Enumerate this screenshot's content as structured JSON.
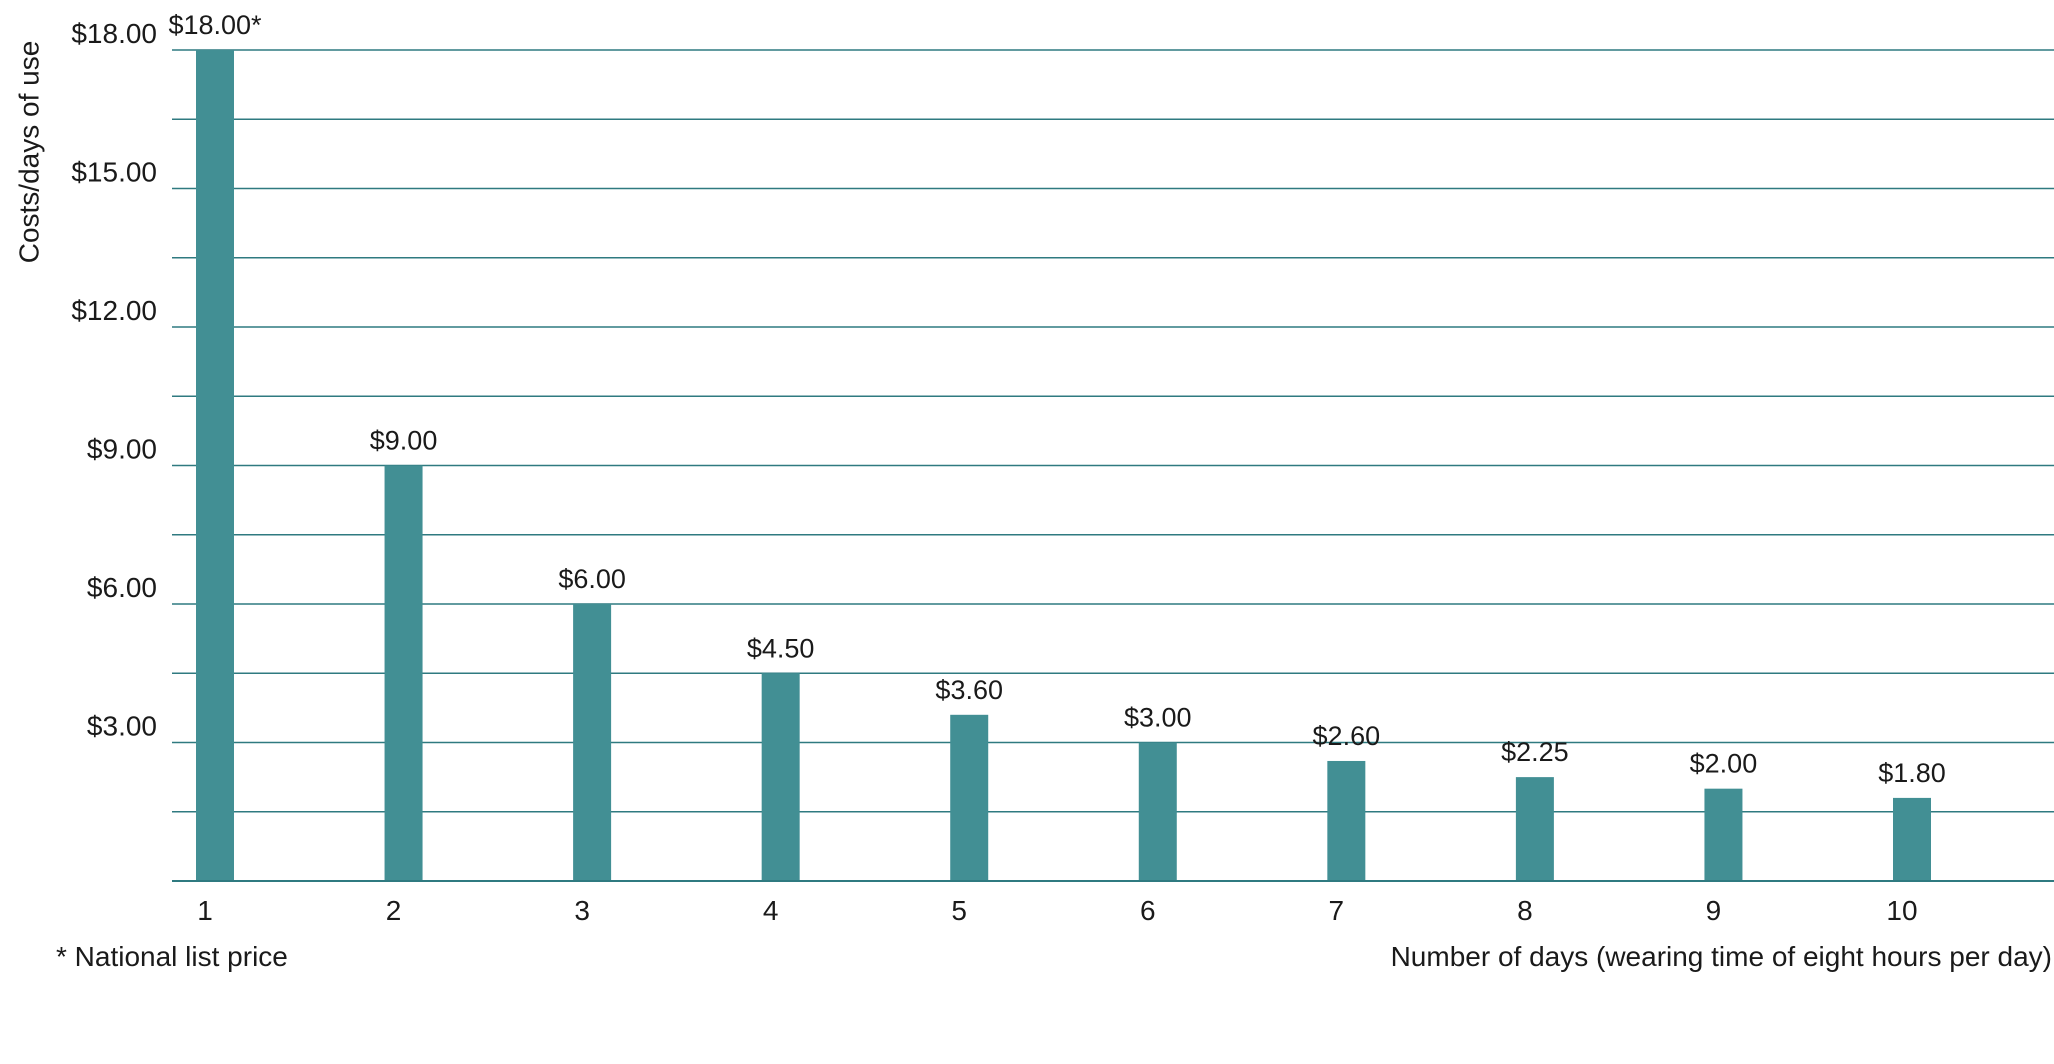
{
  "chart_data": {
    "type": "bar",
    "title": "",
    "ylabel": "Costs/days of use",
    "xlabel": "Number of days (wearing time of eight hours per day)",
    "footnote": "* National list price",
    "categories": [
      "1",
      "2",
      "3",
      "4",
      "5",
      "6",
      "7",
      "8",
      "9",
      "10"
    ],
    "values": [
      18.0,
      9.0,
      6.0,
      4.5,
      3.6,
      3.0,
      2.6,
      2.25,
      2.0,
      1.8
    ],
    "data_labels": [
      "$18.00*",
      "$9.00",
      "$6.00",
      "$4.50",
      "$3.60",
      "$3.00",
      "$2.60",
      "$2.25",
      "$2.00",
      "$1.80"
    ],
    "y_ticks": [
      3,
      6,
      9,
      12,
      15,
      18
    ],
    "y_tick_labels": [
      "$3.00",
      "$6.00",
      "$9.00",
      "$12.00",
      "$15.00",
      "$18.00"
    ],
    "gridline_step": 1.5,
    "ylim": [
      0,
      18
    ],
    "grid": true,
    "legend": "none",
    "bar_color": "#428f94",
    "grid_color": "#2f7a80"
  }
}
